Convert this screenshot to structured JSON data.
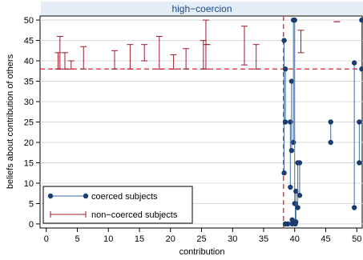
{
  "chart_data": {
    "type": "scatter",
    "title": "high−coercion",
    "xlabel": "contribution",
    "ylabel": "beliefs about contribution of others",
    "xlim": [
      -1,
      51
    ],
    "ylim": [
      -1,
      51
    ],
    "x_ticks": [
      "0",
      "5",
      "10",
      "15",
      "20",
      "25",
      "30",
      "35",
      "40",
      "45",
      "50"
    ],
    "y_ticks": [
      "0",
      "5",
      "10",
      "15",
      "20",
      "25",
      "30",
      "35",
      "40",
      "45",
      "50"
    ],
    "reference_lines": {
      "vertical_x": 38.2,
      "horizontal_y": 38,
      "style": "dashed red"
    },
    "colors": {
      "coerced": "#1a3d6e",
      "noncoerced": "#9b1c2c",
      "reference": "#e0262b",
      "title": "#1a4a8a"
    },
    "legend": {
      "position": "bottom-left",
      "entries": [
        {
          "label": "coerced subjects",
          "series": "coerced"
        },
        {
          "label": "non−coerced subjects",
          "series": "noncoerced"
        }
      ]
    },
    "series": [
      {
        "name": "coerced subjects",
        "mark": "dot-range",
        "ranges": [
          {
            "x": 38.3,
            "y_low": 12.5,
            "y_high": 45
          },
          {
            "x": 38.5,
            "y_low": 25,
            "y_high": 38
          },
          {
            "x": 38.5,
            "y_low": 0,
            "y_high": 0
          },
          {
            "x": 38.9,
            "y_low": 0,
            "y_high": 0
          },
          {
            "x": 39.3,
            "y_low": 9,
            "y_high": 25
          },
          {
            "x": 39.5,
            "y_low": 18,
            "y_high": 35
          },
          {
            "x": 39.6,
            "y_low": 0,
            "y_high": 1
          },
          {
            "x": 39.8,
            "y_low": 20,
            "y_high": 50
          },
          {
            "x": 40.0,
            "y_low": 5,
            "y_high": 50
          },
          {
            "x": 40.1,
            "y_low": 0,
            "y_high": 5
          },
          {
            "x": 40.2,
            "y_low": 0.5,
            "y_high": 8
          },
          {
            "x": 40.5,
            "y_low": 4,
            "y_high": 15
          },
          {
            "x": 40.8,
            "y_low": 7,
            "y_high": 15
          },
          {
            "x": 45.8,
            "y_low": 20,
            "y_high": 25
          },
          {
            "x": 49.6,
            "y_low": 4,
            "y_high": 39.5
          },
          {
            "x": 50.4,
            "y_low": 15,
            "y_high": 25
          },
          {
            "x": 50.8,
            "y_low": 38,
            "y_high": 50
          }
        ]
      },
      {
        "name": "non−coerced subjects",
        "mark": "capped-range",
        "ranges": [
          {
            "x": 1.9,
            "y_low": 38,
            "y_high": 42
          },
          {
            "x": 2.2,
            "y_low": 38,
            "y_high": 46
          },
          {
            "x": 3.0,
            "y_low": 38,
            "y_high": 42
          },
          {
            "x": 4.0,
            "y_low": 38,
            "y_high": 40
          },
          {
            "x": 6.0,
            "y_low": 38,
            "y_high": 43.5
          },
          {
            "x": 11.0,
            "y_low": 38,
            "y_high": 42.5
          },
          {
            "x": 13.5,
            "y_low": 38,
            "y_high": 44
          },
          {
            "x": 15.8,
            "y_low": 40,
            "y_high": 44
          },
          {
            "x": 18.2,
            "y_low": 38,
            "y_high": 46
          },
          {
            "x": 20.5,
            "y_low": 38,
            "y_high": 41.5
          },
          {
            "x": 22.5,
            "y_low": 38,
            "y_high": 43
          },
          {
            "x": 25.3,
            "y_low": 38,
            "y_high": 45
          },
          {
            "x": 25.7,
            "y_low": 38,
            "y_high": 50
          },
          {
            "x": 25.9,
            "y_low": 44,
            "y_high": 44
          },
          {
            "x": 31.9,
            "y_low": 39,
            "y_high": 48.5
          },
          {
            "x": 33.8,
            "y_low": 38,
            "y_high": 44
          },
          {
            "x": 41.0,
            "y_low": 42,
            "y_high": 47.5
          },
          {
            "x": 46.8,
            "y_low": 49.6,
            "y_high": 49.6
          }
        ]
      }
    ]
  }
}
